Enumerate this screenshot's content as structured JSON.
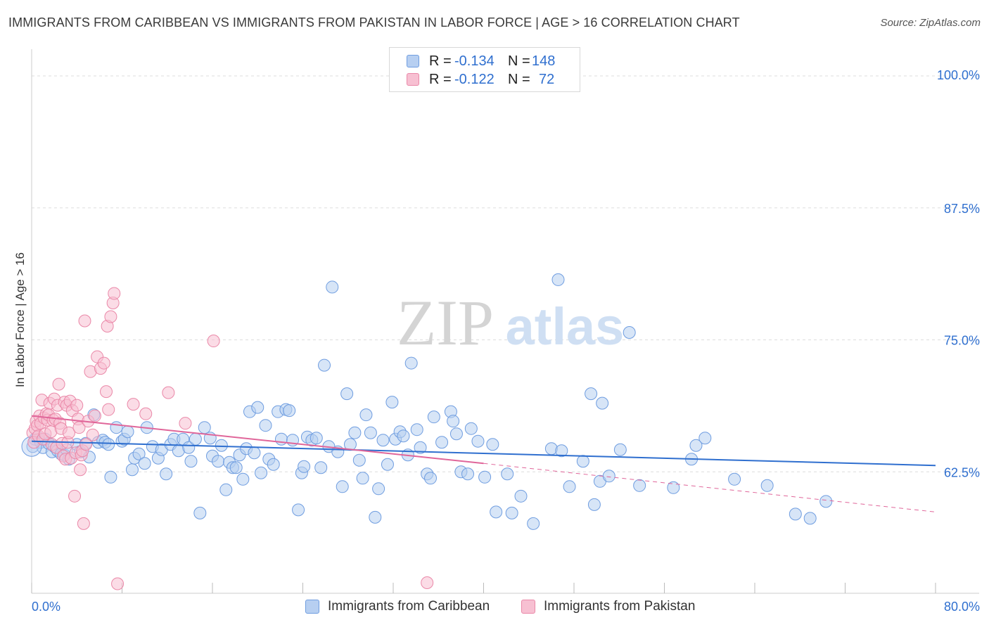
{
  "title": "IMMIGRANTS FROM CARIBBEAN VS IMMIGRANTS FROM PAKISTAN IN LABOR FORCE | AGE > 16 CORRELATION CHART",
  "source": "Source: ZipAtlas.com",
  "watermark": {
    "zip": "ZIP",
    "atlas": "atlas"
  },
  "legend": {
    "rows": [
      {
        "r_label": "R =",
        "r_value": "-0.134",
        "n_label": "N =",
        "n_value": "148",
        "color": "blue"
      },
      {
        "r_label": "R =",
        "r_value": "-0.122",
        "n_label": "N =",
        "n_value": "72",
        "color": "pink"
      }
    ]
  },
  "bottom_legend": [
    {
      "label": "Immigrants from Caribbean",
      "color": "blue"
    },
    {
      "label": "Immigrants from Pakistan",
      "color": "pink"
    }
  ],
  "colors": {
    "blue_fill": "#b7cff1",
    "blue_stroke": "#6f9de0",
    "blue_line": "#2f6fcf",
    "pink_fill": "#f7c0d2",
    "pink_stroke": "#ea88a8",
    "pink_line": "#e0669a",
    "axis_text": "#2f6fcf",
    "grid": "#dddddd"
  },
  "chart_data": {
    "type": "scatter",
    "title": "IMMIGRANTS FROM CARIBBEAN VS IMMIGRANTS FROM PAKISTAN IN LABOR FORCE | AGE > 16 CORRELATION CHART",
    "xlabel": "",
    "ylabel": "In Labor Force | Age > 16",
    "xlim": [
      0,
      80
    ],
    "ylim": [
      51,
      102
    ],
    "x_tick_labels": [
      "0.0%",
      "80.0%"
    ],
    "y_ticks": [
      62.5,
      75.0,
      87.5,
      100.0
    ],
    "y_tick_labels": [
      "62.5%",
      "75.0%",
      "87.5%",
      "100.0%"
    ],
    "grid": "horizontal dashed",
    "legend_position": "top-center",
    "series": [
      {
        "name": "Immigrants from Caribbean",
        "r": -0.134,
        "n": 148,
        "trend": {
          "x": [
            0,
            80
          ],
          "y": [
            65.4,
            63.1
          ],
          "style": "solid"
        },
        "points": [
          [
            0.1,
            64.9
          ],
          [
            0.3,
            65.6
          ],
          [
            0.5,
            65.8
          ],
          [
            0.8,
            65.3
          ],
          [
            1.0,
            64.8
          ],
          [
            1.2,
            65.6
          ],
          [
            1.5,
            65.2
          ],
          [
            1.8,
            64.4
          ],
          [
            2.0,
            64.9
          ],
          [
            2.3,
            64.5
          ],
          [
            2.6,
            64.2
          ],
          [
            2.9,
            64.1
          ],
          [
            3.1,
            64.6
          ],
          [
            3.3,
            63.7
          ],
          [
            4.0,
            65.1
          ],
          [
            4.3,
            64.4
          ],
          [
            4.8,
            65.2
          ],
          [
            5.1,
            63.9
          ],
          [
            5.5,
            67.9
          ],
          [
            5.9,
            65.3
          ],
          [
            6.3,
            65.5
          ],
          [
            6.5,
            65.3
          ],
          [
            6.8,
            65.1
          ],
          [
            7.0,
            62.0
          ],
          [
            7.5,
            66.7
          ],
          [
            8.0,
            65.4
          ],
          [
            8.2,
            65.6
          ],
          [
            8.5,
            66.3
          ],
          [
            8.9,
            62.7
          ],
          [
            9.1,
            63.8
          ],
          [
            9.5,
            64.2
          ],
          [
            10.0,
            63.3
          ],
          [
            10.2,
            66.7
          ],
          [
            10.7,
            64.9
          ],
          [
            11.2,
            63.8
          ],
          [
            11.5,
            64.6
          ],
          [
            11.9,
            62.3
          ],
          [
            12.3,
            65.1
          ],
          [
            12.6,
            65.6
          ],
          [
            13.0,
            64.5
          ],
          [
            13.4,
            65.6
          ],
          [
            13.9,
            64.8
          ],
          [
            14.1,
            63.5
          ],
          [
            14.5,
            65.6
          ],
          [
            14.9,
            58.6
          ],
          [
            15.3,
            66.7
          ],
          [
            15.8,
            65.7
          ],
          [
            16.0,
            64.0
          ],
          [
            16.5,
            63.5
          ],
          [
            16.8,
            65.0
          ],
          [
            17.2,
            60.8
          ],
          [
            17.5,
            63.4
          ],
          [
            17.8,
            62.9
          ],
          [
            18.1,
            62.9
          ],
          [
            18.4,
            64.1
          ],
          [
            18.7,
            61.8
          ],
          [
            19.0,
            64.7
          ],
          [
            19.3,
            68.2
          ],
          [
            19.7,
            64.3
          ],
          [
            20.0,
            68.6
          ],
          [
            20.3,
            62.4
          ],
          [
            20.7,
            66.9
          ],
          [
            21.0,
            63.7
          ],
          [
            21.4,
            63.2
          ],
          [
            21.8,
            68.2
          ],
          [
            22.1,
            65.6
          ],
          [
            22.5,
            68.4
          ],
          [
            22.8,
            68.3
          ],
          [
            23.1,
            65.5
          ],
          [
            23.6,
            58.9
          ],
          [
            23.9,
            62.4
          ],
          [
            24.1,
            63.0
          ],
          [
            24.4,
            65.8
          ],
          [
            24.8,
            65.5
          ],
          [
            25.2,
            65.7
          ],
          [
            25.6,
            62.9
          ],
          [
            25.9,
            72.6
          ],
          [
            26.3,
            64.9
          ],
          [
            26.6,
            80.0
          ],
          [
            27.1,
            64.4
          ],
          [
            27.5,
            61.1
          ],
          [
            27.9,
            69.9
          ],
          [
            28.2,
            65.1
          ],
          [
            28.6,
            66.2
          ],
          [
            29.0,
            63.6
          ],
          [
            29.3,
            61.9
          ],
          [
            29.6,
            67.9
          ],
          [
            30.0,
            66.2
          ],
          [
            30.4,
            58.2
          ],
          [
            30.7,
            60.9
          ],
          [
            31.1,
            65.5
          ],
          [
            31.5,
            63.2
          ],
          [
            31.9,
            69.1
          ],
          [
            32.2,
            65.6
          ],
          [
            32.6,
            66.3
          ],
          [
            32.9,
            65.9
          ],
          [
            33.3,
            64.1
          ],
          [
            33.6,
            72.8
          ],
          [
            34.1,
            66.5
          ],
          [
            34.4,
            64.8
          ],
          [
            35.0,
            62.3
          ],
          [
            35.3,
            61.9
          ],
          [
            35.6,
            67.7
          ],
          [
            36.3,
            65.3
          ],
          [
            37.1,
            68.2
          ],
          [
            37.3,
            67.3
          ],
          [
            37.6,
            66.1
          ],
          [
            38.0,
            62.5
          ],
          [
            38.6,
            62.3
          ],
          [
            38.9,
            66.6
          ],
          [
            39.5,
            65.4
          ],
          [
            40.1,
            62.0
          ],
          [
            40.8,
            65.1
          ],
          [
            41.1,
            58.7
          ],
          [
            42.1,
            62.3
          ],
          [
            42.5,
            58.6
          ],
          [
            43.3,
            60.2
          ],
          [
            44.4,
            57.6
          ],
          [
            46.0,
            64.7
          ],
          [
            46.6,
            80.7
          ],
          [
            46.9,
            64.5
          ],
          [
            47.6,
            61.1
          ],
          [
            48.8,
            63.5
          ],
          [
            49.5,
            69.9
          ],
          [
            49.8,
            59.4
          ],
          [
            50.3,
            61.6
          ],
          [
            50.5,
            69.0
          ],
          [
            51.1,
            62.1
          ],
          [
            52.1,
            64.6
          ],
          [
            52.9,
            75.7
          ],
          [
            53.8,
            61.2
          ],
          [
            56.8,
            61.0
          ],
          [
            58.4,
            63.7
          ],
          [
            58.8,
            65.0
          ],
          [
            59.6,
            65.7
          ],
          [
            62.2,
            61.8
          ],
          [
            65.1,
            61.2
          ],
          [
            67.6,
            58.5
          ],
          [
            68.9,
            58.1
          ],
          [
            70.3,
            59.7
          ]
        ]
      },
      {
        "name": "Immigrants from Pakistan",
        "r": -0.122,
        "n": 72,
        "trend": {
          "x": [
            0,
            40,
            80
          ],
          "y": [
            67.8,
            63.3,
            58.7
          ],
          "style": "solid to 40 then dashed"
        },
        "points": [
          [
            0.1,
            66.2
          ],
          [
            0.2,
            65.3
          ],
          [
            0.3,
            66.6
          ],
          [
            0.4,
            67.3
          ],
          [
            0.5,
            66.9
          ],
          [
            0.6,
            65.9
          ],
          [
            0.7,
            67.8
          ],
          [
            0.8,
            67.1
          ],
          [
            0.9,
            69.3
          ],
          [
            1.0,
            65.6
          ],
          [
            1.1,
            67.6
          ],
          [
            1.2,
            66.1
          ],
          [
            1.3,
            68.0
          ],
          [
            1.4,
            67.4
          ],
          [
            1.5,
            67.9
          ],
          [
            1.6,
            69.0
          ],
          [
            1.7,
            66.3
          ],
          [
            1.8,
            65.1
          ],
          [
            1.9,
            67.4
          ],
          [
            2.0,
            69.4
          ],
          [
            2.1,
            67.5
          ],
          [
            2.2,
            64.8
          ],
          [
            2.3,
            68.8
          ],
          [
            2.4,
            70.8
          ],
          [
            2.5,
            67.1
          ],
          [
            2.6,
            66.6
          ],
          [
            2.7,
            65.2
          ],
          [
            2.8,
            64.0
          ],
          [
            2.9,
            69.1
          ],
          [
            3.0,
            63.7
          ],
          [
            3.1,
            68.8
          ],
          [
            3.2,
            65.3
          ],
          [
            3.3,
            66.2
          ],
          [
            3.4,
            69.2
          ],
          [
            3.5,
            63.8
          ],
          [
            3.6,
            68.3
          ],
          [
            3.8,
            60.2
          ],
          [
            3.9,
            64.3
          ],
          [
            4.0,
            68.8
          ],
          [
            4.1,
            67.5
          ],
          [
            4.2,
            66.7
          ],
          [
            4.3,
            62.7
          ],
          [
            4.4,
            64.1
          ],
          [
            4.5,
            64.5
          ],
          [
            4.6,
            57.6
          ],
          [
            4.7,
            76.8
          ],
          [
            4.8,
            65.1
          ],
          [
            5.0,
            67.3
          ],
          [
            5.2,
            72.0
          ],
          [
            5.4,
            66.0
          ],
          [
            5.6,
            67.8
          ],
          [
            5.8,
            73.4
          ],
          [
            6.1,
            72.3
          ],
          [
            6.4,
            72.8
          ],
          [
            6.6,
            70.1
          ],
          [
            6.7,
            76.3
          ],
          [
            6.8,
            68.4
          ],
          [
            7.0,
            77.2
          ],
          [
            7.2,
            78.5
          ],
          [
            7.3,
            79.4
          ],
          [
            7.6,
            51.9
          ],
          [
            9.0,
            68.9
          ],
          [
            10.1,
            68.0
          ],
          [
            12.1,
            70.0
          ],
          [
            13.6,
            67.1
          ],
          [
            16.1,
            74.9
          ],
          [
            35.0,
            52.0
          ]
        ]
      }
    ]
  }
}
